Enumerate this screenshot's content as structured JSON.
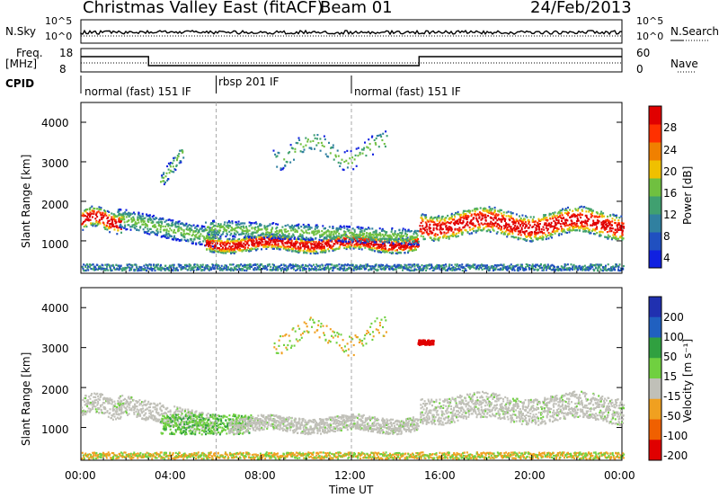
{
  "header": {
    "title": "Christmas Valley East (fitACF)",
    "beam": "Beam 01",
    "date": "24/Feb/2013"
  },
  "noise_panel": {
    "left_label": "N.Sky",
    "left_ticks": [
      "10^5",
      "10^0"
    ],
    "right_label": "N.Search",
    "right_ticks": [
      "10^5",
      "10^0"
    ]
  },
  "freq_panel": {
    "left_label_1": "Freq.",
    "left_label_2": "[MHz]",
    "left_ticks": [
      "18",
      "8"
    ],
    "right_label": "Nave",
    "right_ticks": [
      "60",
      "0"
    ]
  },
  "cpid": {
    "label": "CPID",
    "segments": [
      {
        "name": "normal (fast) 151 IF",
        "start_hour": 0,
        "end_hour": 6
      },
      {
        "name": "rbsp 201 IF",
        "start_hour": 6,
        "end_hour": 12
      },
      {
        "name": "normal (fast) 151 IF",
        "start_hour": 12,
        "end_hour": 24
      }
    ]
  },
  "chart_data": [
    {
      "type": "heatmap",
      "name": "power",
      "ylabel": "Slant Range [km]",
      "xlabel": "",
      "ylim": [
        180,
        4500
      ],
      "yticks": [
        "1000",
        "2000",
        "3000",
        "4000"
      ],
      "colorbar_label": "Power [dB]",
      "colorbar_ticks": [
        "28",
        "24",
        "20",
        "16",
        "12",
        "8",
        "4"
      ],
      "colors": [
        "#1020e0",
        "#2050c0",
        "#3080a0",
        "#40a070",
        "#70c040",
        "#f0c000",
        "#f08000",
        "#ff3000",
        "#e00000"
      ]
    },
    {
      "type": "heatmap",
      "name": "velocity",
      "ylabel": "Slant Range [km]",
      "xlabel": "Time UT",
      "ylim": [
        180,
        4500
      ],
      "yticks": [
        "1000",
        "2000",
        "3000",
        "4000"
      ],
      "xticks": [
        "00:00",
        "04:00",
        "08:00",
        "12:00",
        "16:00",
        "20:00",
        "00:00"
      ],
      "colorbar_label": "Velocity [m s⁻¹]",
      "colorbar_ticks": [
        "200",
        "100",
        "50",
        "15",
        "-15",
        "-50",
        "-100",
        "-200"
      ],
      "colors": [
        "#2030b0",
        "#2060c0",
        "#30a040",
        "#70d040",
        "#c0c0b8",
        "#f0a020",
        "#f06000",
        "#e00000"
      ]
    }
  ]
}
